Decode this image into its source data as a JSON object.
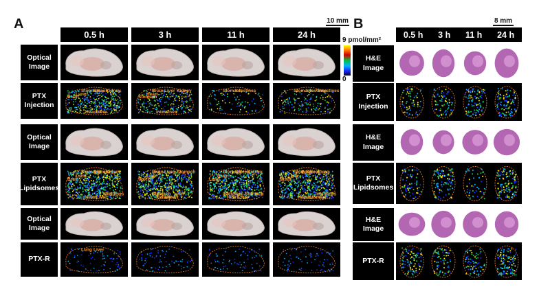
{
  "panelA": {
    "letter": "A",
    "time_headers": [
      "0.5 h",
      "3 h",
      "11 h",
      "24 h"
    ],
    "scale_label": "10 mm",
    "colorbar": {
      "max_label": "9 pmol/mm²",
      "min_label": "0"
    },
    "row_labels": [
      "Optical\nImage",
      "PTX\nInjection",
      "Optical\nImage",
      "PTX\nLipidsomes",
      "Optical\nImage",
      "PTX-R"
    ],
    "organ_labels": {
      "ptx_injection_0_5h": [
        "Stomach",
        "Spleen",
        "Kidney",
        "Lung",
        "Brain",
        "Heart",
        "Liver"
      ],
      "ptx_injection_3h": [
        "Brain",
        "Liver",
        "Kidney",
        "Heart",
        "Stomach",
        "Intestines"
      ],
      "ptx_injection_11h": [
        "Stomach",
        "Intestines"
      ],
      "ptx_injection_24h": [
        "Stomach",
        "Intestines",
        "Intestines"
      ],
      "ptx_lipo_0_5h": [
        "Stomach",
        "Spleen",
        "Kidney",
        "Lung",
        "Brain",
        "Heart",
        "Liver",
        "Intestines"
      ],
      "ptx_lipo_3h": [
        "Brain",
        "Lung",
        "Stomach",
        "Liver",
        "Spleen",
        "Kidney",
        "Heart",
        "Liver",
        "Stomach"
      ],
      "ptx_lipo_11h": [
        "Stomach",
        "Spleen",
        "Kidney",
        "Brain",
        "Lung",
        "Heart",
        "Liver",
        "Stomach",
        "Intestines"
      ],
      "ptx_lipo_24h": [
        "Stomach",
        "Spleen",
        "Lung",
        "Liver",
        "Brain",
        "Heart",
        "Stomach",
        "Intestines"
      ],
      "ptx_r_0_5h": [
        "Lung",
        "Liver"
      ]
    }
  },
  "panelB": {
    "letter": "B",
    "time_headers": [
      "0.5 h",
      "3 h",
      "11 h",
      "24 h"
    ],
    "scale_label": "8 mm",
    "row_labels": [
      "H&E\nImage",
      "PTX\nInjection",
      "H&E\nImage",
      "PTX\nLipidsomes",
      "H&E\nImage",
      "PTX-R"
    ]
  },
  "colors": {
    "background": "#ffffff",
    "cell_background": "#000000",
    "outline": "#e07a2a",
    "organ_label": "#f29a3a",
    "he_stain": "#a64ca6"
  }
}
